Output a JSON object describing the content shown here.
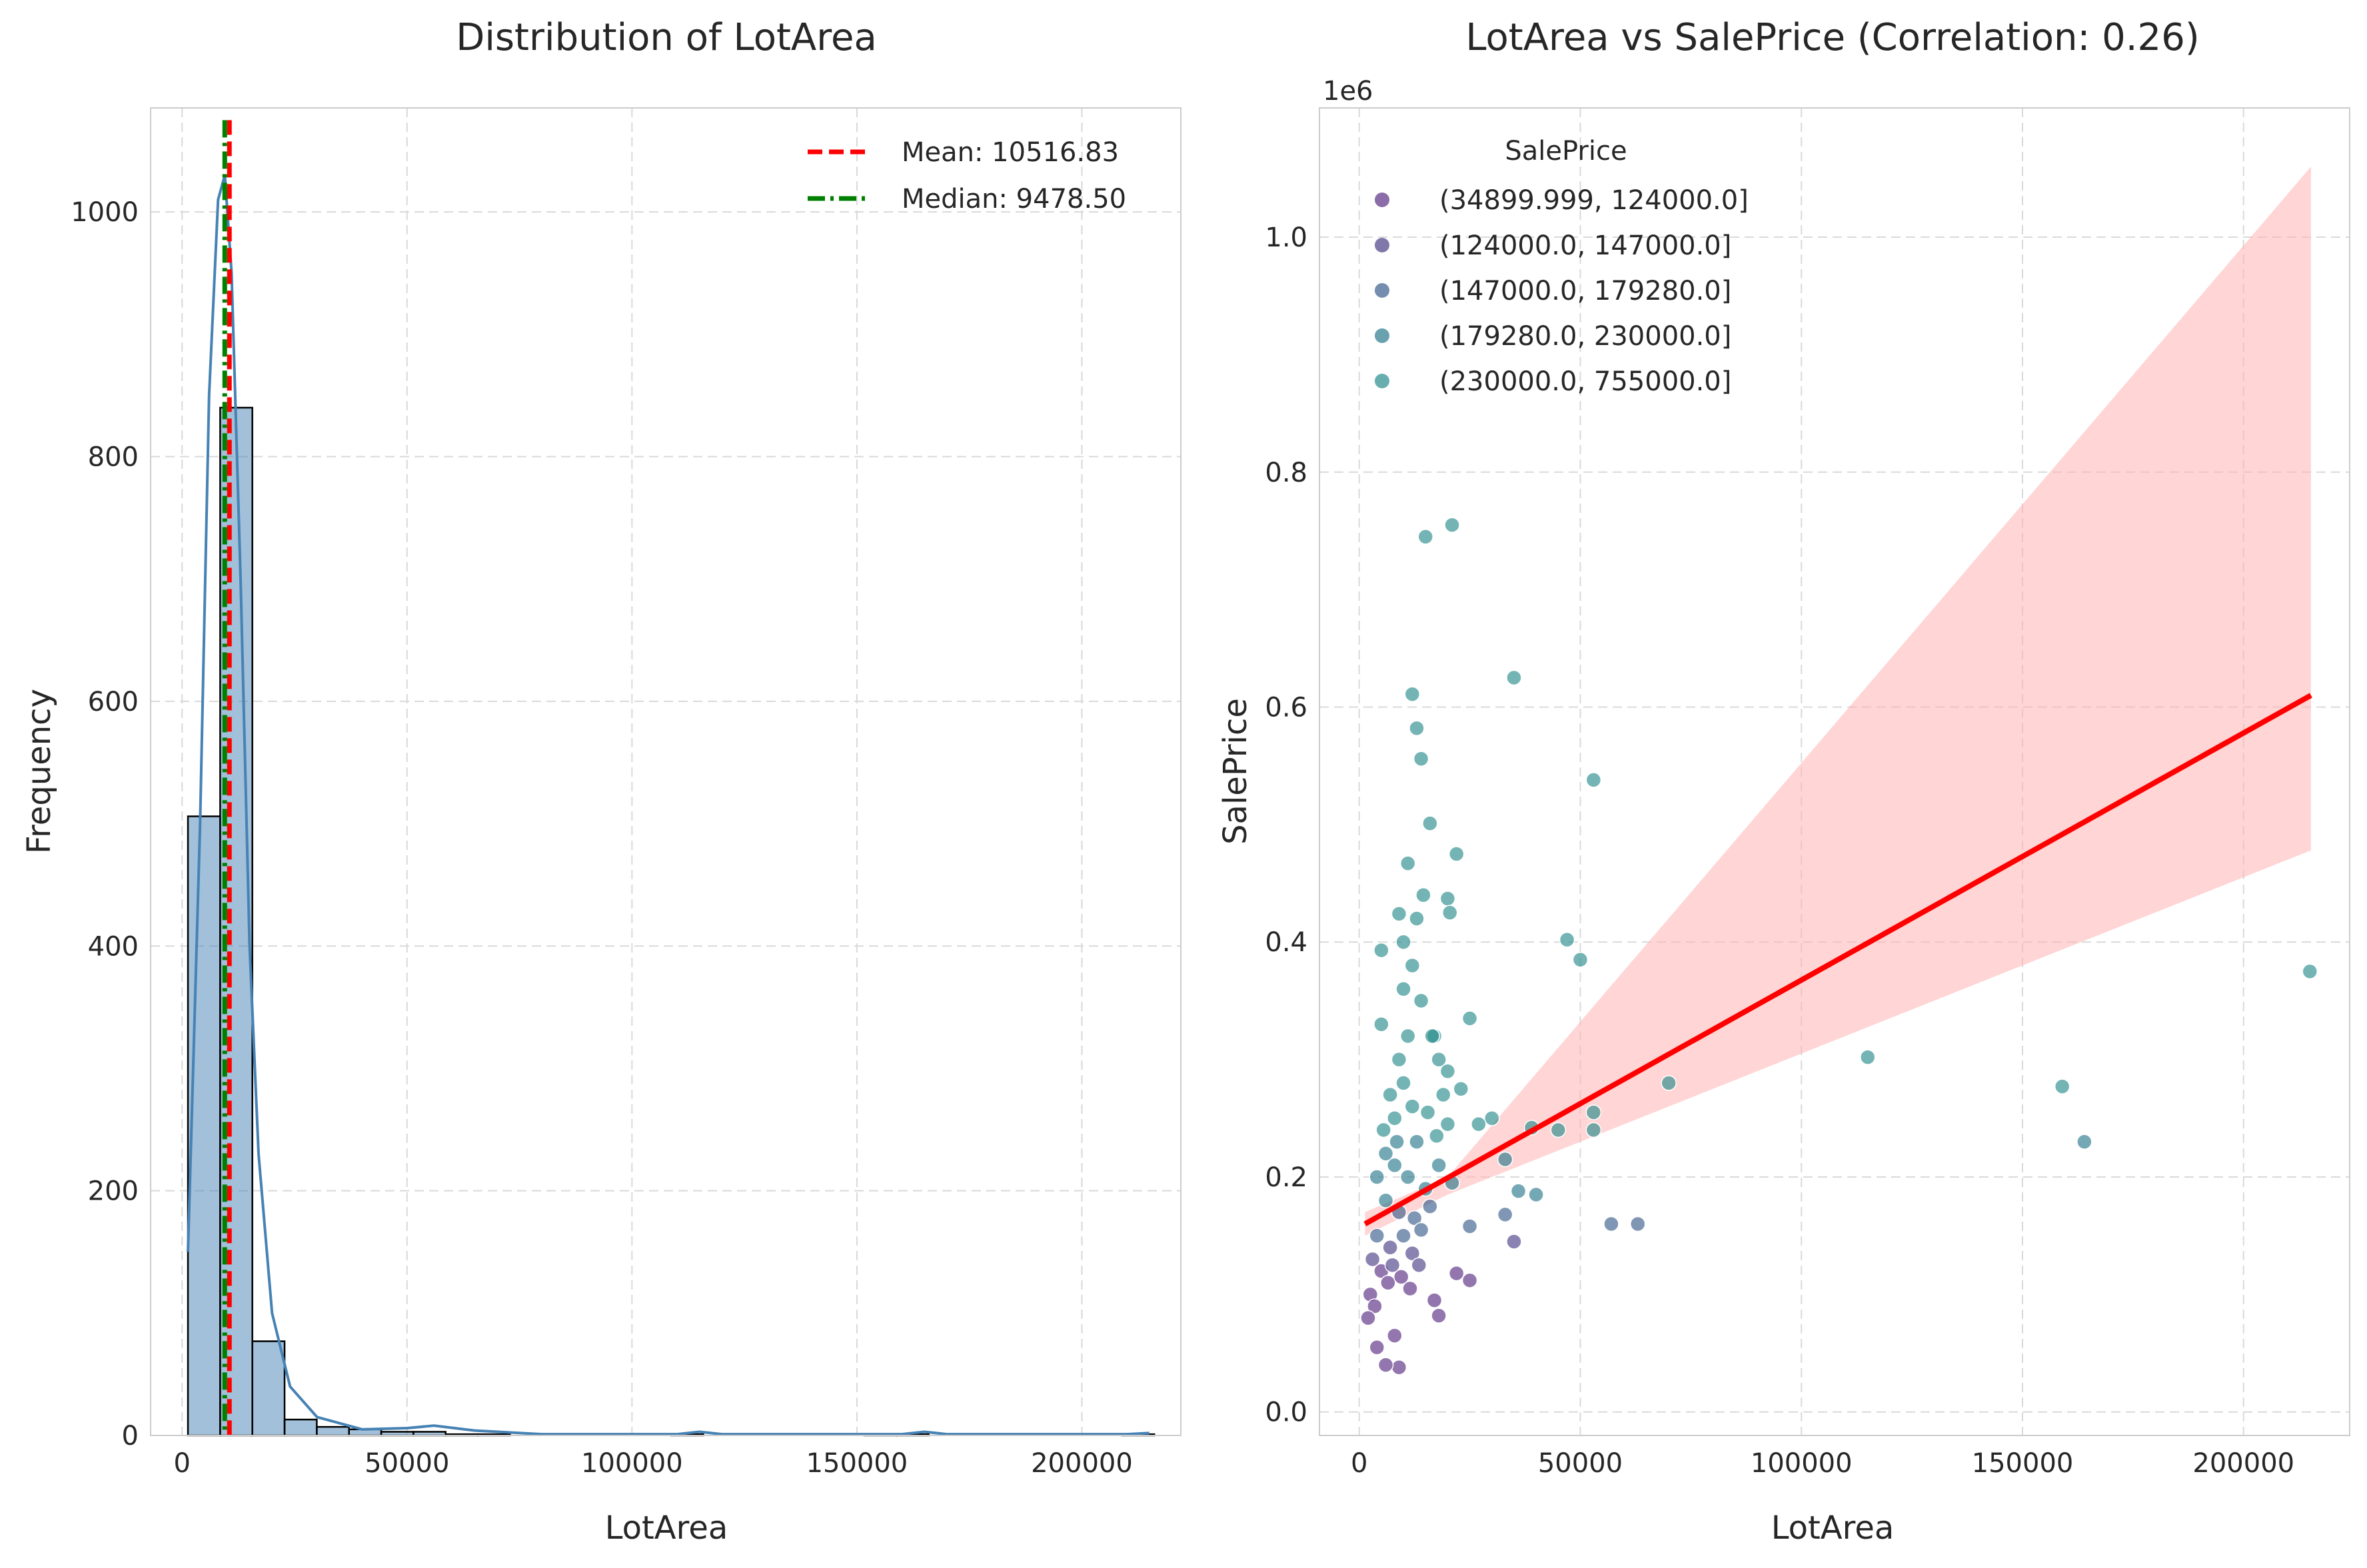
{
  "figure": {
    "background": "#ffffff"
  },
  "chart_data": [
    {
      "type": "bar",
      "title": "Distribution of LotArea",
      "xlabel": "LotArea",
      "ylabel": "Frequency",
      "xlim": [
        -7000,
        222000
      ],
      "ylim": [
        0,
        1085
      ],
      "xticks": [
        0,
        50000,
        100000,
        150000,
        200000
      ],
      "xtick_labels": [
        "0",
        "50000",
        "100000",
        "150000",
        "200000"
      ],
      "yticks": [
        0,
        200,
        400,
        600,
        800,
        1000
      ],
      "ytick_labels": [
        "0",
        "200",
        "400",
        "600",
        "800",
        "1000"
      ],
      "grid": true,
      "legend_position": "top-right",
      "bar_color": "#4682b4",
      "bins": {
        "edges": [
          1300,
          8460,
          15620,
          22780,
          29940,
          37100,
          44260,
          51420,
          58580,
          65740,
          72900,
          80060,
          87220,
          94380,
          101540,
          108700,
          115860,
          123020,
          130180,
          137340,
          144500,
          151660,
          158820,
          165980,
          173140,
          180300,
          187460,
          194620,
          201780,
          208940,
          216100
        ],
        "counts": [
          506,
          840,
          77,
          13,
          7,
          5,
          3,
          3,
          1,
          1,
          0,
          0,
          0,
          0,
          0,
          1,
          0,
          0,
          0,
          0,
          0,
          1,
          1,
          0,
          0,
          0,
          0,
          0,
          0,
          1
        ]
      },
      "kde": {
        "color": "#4682b4",
        "x": [
          1300,
          4000,
          6000,
          8000,
          9500,
          11000,
          13000,
          15000,
          17000,
          20000,
          24000,
          30000,
          40000,
          50000,
          56000,
          65000,
          80000,
          110000,
          115000,
          120000,
          160000,
          165000,
          170000,
          210000,
          215000
        ],
        "y": [
          150,
          500,
          850,
          1010,
          1030,
          950,
          700,
          400,
          230,
          100,
          40,
          15,
          5,
          6,
          8,
          4,
          1,
          1,
          3,
          1,
          1,
          3,
          1,
          1,
          2
        ]
      },
      "reference_lines": [
        {
          "name": "Mean: 10516.83",
          "value": 10516.83,
          "color": "#ff0000",
          "style": "dashed"
        },
        {
          "name": "Median: 9478.50",
          "value": 9478.5,
          "color": "#008000",
          "style": "dashdot"
        }
      ]
    },
    {
      "type": "scatter",
      "title": "LotArea vs SalePrice (Correlation: 0.26)",
      "xlabel": "LotArea",
      "ylabel": "SalePrice",
      "y_offset_label": "1e6",
      "xlim": [
        -9000,
        224000
      ],
      "ylim": [
        -20000,
        1110000
      ],
      "xticks": [
        0,
        50000,
        100000,
        150000,
        200000
      ],
      "xtick_labels": [
        "0",
        "50000",
        "100000",
        "150000",
        "200000"
      ],
      "yticks": [
        0,
        200000,
        400000,
        600000,
        800000,
        1000000
      ],
      "ytick_labels": [
        "0.0",
        "0.2",
        "0.4",
        "0.6",
        "0.8",
        "1.0"
      ],
      "grid": true,
      "legend_position": "top-left",
      "legend_title": "SalePrice",
      "series": [
        {
          "name": "(34899.999, 124000.0]",
          "color": "#5b2d84"
        },
        {
          "name": "(124000.0, 147000.0]",
          "color": "#4b3f86"
        },
        {
          "name": "(147000.0, 179280.0]",
          "color": "#3b5d8c"
        },
        {
          "name": "(179280.0, 230000.0]",
          "color": "#2a7a8c"
        },
        {
          "name": "(230000.0, 755000.0]",
          "color": "#2a8c8c"
        }
      ],
      "visible_points": [
        [
          15000,
          745000
        ],
        [
          21000,
          755000
        ],
        [
          35000,
          625000
        ],
        [
          12000,
          611000
        ],
        [
          13000,
          582000
        ],
        [
          14000,
          556000
        ],
        [
          16000,
          501000
        ],
        [
          22000,
          475000
        ],
        [
          11000,
          467000
        ],
        [
          20000,
          437000
        ],
        [
          20500,
          425000
        ],
        [
          9000,
          424000
        ],
        [
          5000,
          393000
        ],
        [
          47000,
          402000
        ],
        [
          50000,
          385000
        ],
        [
          25000,
          335000
        ],
        [
          5000,
          330000
        ],
        [
          53000,
          538000
        ],
        [
          115000,
          302000
        ],
        [
          70000,
          280000
        ],
        [
          159000,
          277000
        ],
        [
          215000,
          375000
        ],
        [
          164000,
          230000
        ],
        [
          57000,
          160000
        ],
        [
          63000,
          160000
        ],
        [
          53000,
          255000
        ],
        [
          53000,
          240000
        ],
        [
          45000,
          240000
        ],
        [
          39000,
          242000
        ],
        [
          33000,
          215000
        ],
        [
          36000,
          188000
        ],
        [
          40000,
          185000
        ],
        [
          33000,
          168000
        ],
        [
          35000,
          145000
        ],
        [
          25000,
          158000
        ],
        [
          22000,
          118000
        ],
        [
          25000,
          112000
        ],
        [
          17000,
          95000
        ],
        [
          18000,
          82000
        ],
        [
          9000,
          38000
        ],
        [
          6000,
          40000
        ],
        [
          4000,
          55000
        ],
        [
          8000,
          65000
        ],
        [
          30000,
          250000
        ],
        [
          27000,
          245000
        ],
        [
          23000,
          275000
        ],
        [
          20000,
          290000
        ],
        [
          17000,
          320000
        ],
        [
          14000,
          350000
        ],
        [
          10000,
          360000
        ],
        [
          3000,
          130000
        ],
        [
          2500,
          100000
        ],
        [
          4000,
          150000
        ],
        [
          6000,
          180000
        ],
        [
          8000,
          210000
        ],
        [
          5000,
          120000
        ],
        [
          7000,
          140000
        ],
        [
          9000,
          170000
        ],
        [
          11000,
          200000
        ],
        [
          13000,
          230000
        ],
        [
          12000,
          260000
        ],
        [
          10000,
          280000
        ],
        [
          8000,
          250000
        ],
        [
          6000,
          220000
        ],
        [
          4000,
          200000
        ],
        [
          3500,
          90000
        ],
        [
          2000,
          80000
        ],
        [
          6500,
          110000
        ],
        [
          7500,
          125000
        ],
        [
          10000,
          150000
        ],
        [
          12500,
          165000
        ],
        [
          15000,
          190000
        ],
        [
          18000,
          210000
        ],
        [
          21000,
          195000
        ],
        [
          16000,
          175000
        ],
        [
          14000,
          155000
        ],
        [
          12000,
          135000
        ],
        [
          9500,
          115000
        ],
        [
          11500,
          105000
        ],
        [
          13500,
          125000
        ],
        [
          9000,
          300000
        ],
        [
          11000,
          320000
        ],
        [
          7000,
          270000
        ],
        [
          5500,
          240000
        ],
        [
          8500,
          230000
        ],
        [
          12000,
          380000
        ],
        [
          10000,
          400000
        ],
        [
          13000,
          420000
        ],
        [
          14500,
          440000
        ],
        [
          16500,
          320000
        ],
        [
          18000,
          300000
        ],
        [
          19000,
          270000
        ],
        [
          15500,
          255000
        ],
        [
          17500,
          235000
        ],
        [
          20000,
          245000
        ]
      ],
      "regression": {
        "color": "#ff0000",
        "x": [
          1300,
          215245
        ],
        "y": [
          160000,
          610000
        ],
        "ci_color": "#ffb3b3",
        "ci_upper": [
          [
            1300,
            170000
          ],
          [
            20000,
            200000
          ],
          [
            215245,
            1060000
          ]
        ],
        "ci_lower": [
          [
            1300,
            150000
          ],
          [
            20000,
            185000
          ],
          [
            50000,
            230000
          ],
          [
            215245,
            478000
          ]
        ]
      }
    }
  ]
}
